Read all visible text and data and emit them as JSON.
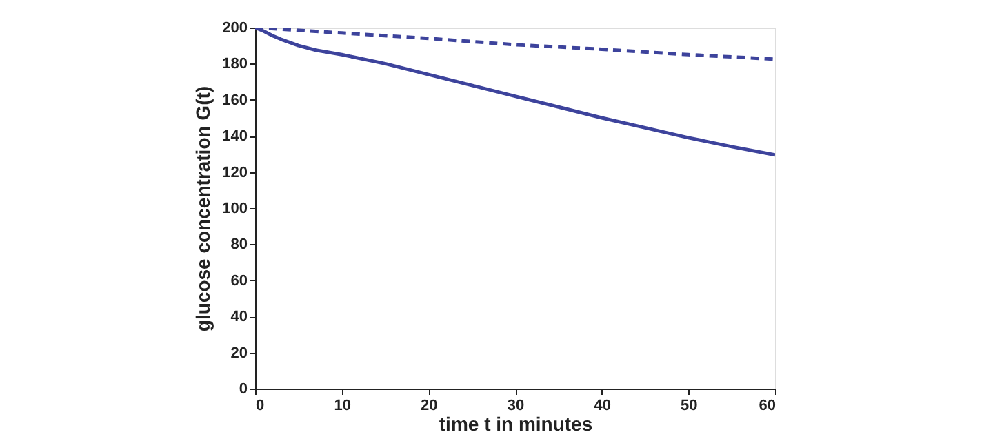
{
  "chart_data": {
    "type": "line",
    "xlabel": "time t in minutes",
    "ylabel": "glucose concentration G(t)",
    "xlim": [
      0,
      60
    ],
    "xticks": [
      0,
      10,
      20,
      30,
      40,
      50,
      60
    ],
    "ylim": [
      0,
      200
    ],
    "yticks": [
      0,
      20,
      40,
      60,
      80,
      100,
      120,
      140,
      160,
      180,
      200
    ],
    "grid": false,
    "marker": "none",
    "series": [
      {
        "color": "#3d439c",
        "line_style": "solid",
        "x": [
          0,
          1,
          2,
          3,
          5,
          7,
          10,
          15,
          20,
          25,
          30,
          35,
          40,
          45,
          50,
          55,
          60
        ],
        "values": [
          200,
          198,
          195.5,
          193.5,
          190,
          187.5,
          185,
          180,
          174,
          168,
          162,
          156,
          150,
          144.5,
          139,
          134,
          129.5
        ]
      },
      {
        "color": "#3d439c",
        "line_style": "dashed",
        "x": [
          0,
          10,
          20,
          30,
          40,
          50,
          60
        ],
        "values": [
          200,
          197,
          194,
          190.5,
          188,
          185,
          182.5
        ]
      }
    ]
  }
}
